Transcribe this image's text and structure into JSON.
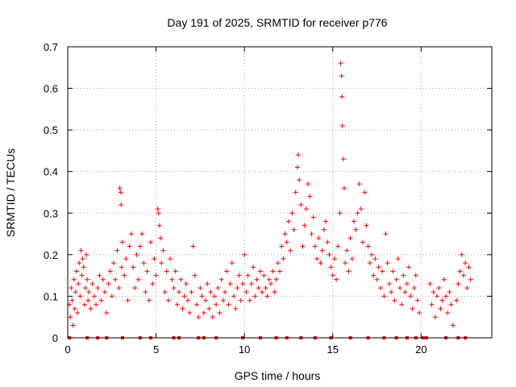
{
  "chart_data": {
    "type": "scatter",
    "title": "Day 191 of 2025, SRMTID for receiver p776",
    "xlabel": "GPS time / hours",
    "ylabel": "SRMTID / TECUs",
    "xlim": [
      0,
      24
    ],
    "ylim": [
      0,
      0.7
    ],
    "x_ticks": [
      0,
      5,
      10,
      15,
      20
    ],
    "x_tick_labels": [
      "0",
      "5",
      "10",
      "15",
      "20"
    ],
    "y_ticks": [
      0,
      0.1,
      0.2,
      0.3,
      0.4,
      0.5,
      0.6,
      0.7
    ],
    "y_tick_labels": [
      "0",
      "0.1",
      "0.2",
      "0.3",
      "0.4",
      "0.5",
      "0.6",
      "0.7"
    ],
    "grid": true,
    "marker": "+",
    "series": [
      {
        "name": "SRMTID",
        "color": "#ff0000",
        "points": [
          [
            0.1,
            0.08
          ],
          [
            0.15,
            0.05
          ],
          [
            0.2,
            0.12
          ],
          [
            0.25,
            0.09
          ],
          [
            0.3,
            0.03
          ],
          [
            0.35,
            0.14
          ],
          [
            0.4,
            0.07
          ],
          [
            0.45,
            0.11
          ],
          [
            0.5,
            0.16
          ],
          [
            0.55,
            0.06
          ],
          [
            0.6,
            0.13
          ],
          [
            0.65,
            0.18
          ],
          [
            0.7,
            0.1
          ],
          [
            0.75,
            0.21
          ],
          [
            0.8,
            0.15
          ],
          [
            0.85,
            0.19
          ],
          [
            0.9,
            0.17
          ],
          [
            0.95,
            0.08
          ],
          [
            1.0,
            0.12
          ],
          [
            1.05,
            0.2
          ],
          [
            1.1,
            0.14
          ],
          [
            1.15,
            0.09
          ],
          [
            1.2,
            0.11
          ],
          [
            1.3,
            0.07
          ],
          [
            1.4,
            0.13
          ],
          [
            1.5,
            0.1
          ],
          [
            1.6,
            0.08
          ],
          [
            1.7,
            0.12
          ],
          [
            1.8,
            0.15
          ],
          [
            1.9,
            0.09
          ],
          [
            2.0,
            0.14
          ],
          [
            2.1,
            0.11
          ],
          [
            2.2,
            0.06
          ],
          [
            2.3,
            0.13
          ],
          [
            2.4,
            0.16
          ],
          [
            2.5,
            0.1
          ],
          [
            2.6,
            0.18
          ],
          [
            2.7,
            0.14
          ],
          [
            2.8,
            0.21
          ],
          [
            2.9,
            0.12
          ],
          [
            2.95,
            0.36
          ],
          [
            3.0,
            0.35
          ],
          [
            3.02,
            0.32
          ],
          [
            3.05,
            0.17
          ],
          [
            3.1,
            0.23
          ],
          [
            3.2,
            0.15
          ],
          [
            3.3,
            0.19
          ],
          [
            3.4,
            0.09
          ],
          [
            3.5,
            0.22
          ],
          [
            3.6,
            0.25
          ],
          [
            3.7,
            0.17
          ],
          [
            3.8,
            0.12
          ],
          [
            3.9,
            0.2
          ],
          [
            4.0,
            0.14
          ],
          [
            4.1,
            0.22
          ],
          [
            4.2,
            0.25
          ],
          [
            4.3,
            0.18
          ],
          [
            4.4,
            0.11
          ],
          [
            4.5,
            0.16
          ],
          [
            4.6,
            0.09
          ],
          [
            4.7,
            0.23
          ],
          [
            4.8,
            0.13
          ],
          [
            4.9,
            0.19
          ],
          [
            5.0,
            0.15
          ],
          [
            5.1,
            0.31
          ],
          [
            5.15,
            0.3
          ],
          [
            5.2,
            0.27
          ],
          [
            5.25,
            0.24
          ],
          [
            5.3,
            0.18
          ],
          [
            5.4,
            0.21
          ],
          [
            5.5,
            0.11
          ],
          [
            5.6,
            0.16
          ],
          [
            5.7,
            0.09
          ],
          [
            5.8,
            0.19
          ],
          [
            5.9,
            0.14
          ],
          [
            6.0,
            0.12
          ],
          [
            6.1,
            0.16
          ],
          [
            6.2,
            0.08
          ],
          [
            6.3,
            0.11
          ],
          [
            6.4,
            0.14
          ],
          [
            6.5,
            0.07
          ],
          [
            6.6,
            0.1
          ],
          [
            6.7,
            0.13
          ],
          [
            6.8,
            0.09
          ],
          [
            6.9,
            0.06
          ],
          [
            7.0,
            0.11
          ],
          [
            7.1,
            0.22
          ],
          [
            7.2,
            0.15
          ],
          [
            7.3,
            0.08
          ],
          [
            7.4,
            0.05
          ],
          [
            7.5,
            0.12
          ],
          [
            7.6,
            0.1
          ],
          [
            7.7,
            0.06
          ],
          [
            7.8,
            0.09
          ],
          [
            7.9,
            0.13
          ],
          [
            8.0,
            0.07
          ],
          [
            8.1,
            0.11
          ],
          [
            8.2,
            0.05
          ],
          [
            8.3,
            0.1
          ],
          [
            8.4,
            0.08
          ],
          [
            8.5,
            0.12
          ],
          [
            8.6,
            0.06
          ],
          [
            8.7,
            0.14
          ],
          [
            8.8,
            0.09
          ],
          [
            8.9,
            0.11
          ],
          [
            9.0,
            0.16
          ],
          [
            9.1,
            0.08
          ],
          [
            9.2,
            0.13
          ],
          [
            9.3,
            0.18
          ],
          [
            9.4,
            0.1
          ],
          [
            9.5,
            0.07
          ],
          [
            9.6,
            0.12
          ],
          [
            9.7,
            0.15
          ],
          [
            9.8,
            0.09
          ],
          [
            9.9,
            0.13
          ],
          [
            10.0,
            0.2
          ],
          [
            10.1,
            0.11
          ],
          [
            10.2,
            0.15
          ],
          [
            10.3,
            0.09
          ],
          [
            10.4,
            0.13
          ],
          [
            10.5,
            0.17
          ],
          [
            10.6,
            0.1
          ],
          [
            10.7,
            0.14
          ],
          [
            10.8,
            0.12
          ],
          [
            10.9,
            0.16
          ],
          [
            11.0,
            0.11
          ],
          [
            11.1,
            0.15
          ],
          [
            11.2,
            0.12
          ],
          [
            11.3,
            0.1
          ],
          [
            11.4,
            0.14
          ],
          [
            11.5,
            0.13
          ],
          [
            11.6,
            0.16
          ],
          [
            11.7,
            0.11
          ],
          [
            11.8,
            0.14
          ],
          [
            11.9,
            0.18
          ],
          [
            12.0,
            0.16
          ],
          [
            12.1,
            0.22
          ],
          [
            12.2,
            0.19
          ],
          [
            12.3,
            0.25
          ],
          [
            12.4,
            0.23
          ],
          [
            12.5,
            0.28
          ],
          [
            12.6,
            0.21
          ],
          [
            12.7,
            0.3
          ],
          [
            12.8,
            0.26
          ],
          [
            12.9,
            0.35
          ],
          [
            13.0,
            0.41
          ],
          [
            13.05,
            0.44
          ],
          [
            13.1,
            0.38
          ],
          [
            13.2,
            0.32
          ],
          [
            13.3,
            0.22
          ],
          [
            13.4,
            0.27
          ],
          [
            13.5,
            0.31
          ],
          [
            13.6,
            0.37
          ],
          [
            13.7,
            0.34
          ],
          [
            13.8,
            0.25
          ],
          [
            13.9,
            0.29
          ],
          [
            14.0,
            0.22
          ],
          [
            14.1,
            0.19
          ],
          [
            14.2,
            0.24
          ],
          [
            14.3,
            0.18
          ],
          [
            14.4,
            0.21
          ],
          [
            14.5,
            0.26
          ],
          [
            14.6,
            0.28
          ],
          [
            14.7,
            0.23
          ],
          [
            14.8,
            0.2
          ],
          [
            14.9,
            0.17
          ],
          [
            15.0,
            0.15
          ],
          [
            15.1,
            0.19
          ],
          [
            15.2,
            0.14
          ],
          [
            15.3,
            0.22
          ],
          [
            15.4,
            0.3
          ],
          [
            15.45,
            0.66
          ],
          [
            15.5,
            0.63
          ],
          [
            15.52,
            0.58
          ],
          [
            15.55,
            0.51
          ],
          [
            15.6,
            0.43
          ],
          [
            15.65,
            0.36
          ],
          [
            15.7,
            0.18
          ],
          [
            15.8,
            0.21
          ],
          [
            15.9,
            0.16
          ],
          [
            16.0,
            0.24
          ],
          [
            16.1,
            0.19
          ],
          [
            16.2,
            0.28
          ],
          [
            16.3,
            0.26
          ],
          [
            16.4,
            0.3
          ],
          [
            16.5,
            0.37
          ],
          [
            16.6,
            0.31
          ],
          [
            16.7,
            0.23
          ],
          [
            16.8,
            0.35
          ],
          [
            16.9,
            0.27
          ],
          [
            17.0,
            0.22
          ],
          [
            17.1,
            0.18
          ],
          [
            17.2,
            0.2
          ],
          [
            17.3,
            0.15
          ],
          [
            17.4,
            0.19
          ],
          [
            17.5,
            0.14
          ],
          [
            17.6,
            0.17
          ],
          [
            17.7,
            0.12
          ],
          [
            17.8,
            0.16
          ],
          [
            17.9,
            0.1
          ],
          [
            18.0,
            0.25
          ],
          [
            18.1,
            0.18
          ],
          [
            18.2,
            0.13
          ],
          [
            18.3,
            0.11
          ],
          [
            18.4,
            0.16
          ],
          [
            18.5,
            0.09
          ],
          [
            18.6,
            0.14
          ],
          [
            18.7,
            0.19
          ],
          [
            18.8,
            0.12
          ],
          [
            18.9,
            0.08
          ],
          [
            19.0,
            0.15
          ],
          [
            19.1,
            0.11
          ],
          [
            19.2,
            0.13
          ],
          [
            19.3,
            0.17
          ],
          [
            19.4,
            0.1
          ],
          [
            19.5,
            0.07
          ],
          [
            19.6,
            0.12
          ],
          [
            19.7,
            0.15
          ],
          [
            19.8,
            0.09
          ],
          [
            19.9,
            0.06
          ],
          [
            20.5,
            0.13
          ],
          [
            20.6,
            0.08
          ],
          [
            20.7,
            0.11
          ],
          [
            20.8,
            0.05
          ],
          [
            20.9,
            0.1
          ],
          [
            21.0,
            0.12
          ],
          [
            21.1,
            0.07
          ],
          [
            21.2,
            0.09
          ],
          [
            21.3,
            0.14
          ],
          [
            21.4,
            0.1
          ],
          [
            21.5,
            0.06
          ],
          [
            21.6,
            0.11
          ],
          [
            21.7,
            0.08
          ],
          [
            21.8,
            0.03
          ],
          [
            22.0,
            0.09
          ],
          [
            22.1,
            0.13
          ],
          [
            22.2,
            0.16
          ],
          [
            22.3,
            0.2
          ],
          [
            22.4,
            0.15
          ],
          [
            22.5,
            0.18
          ],
          [
            22.6,
            0.12
          ],
          [
            22.7,
            0.17
          ],
          [
            22.8,
            0.14
          ]
        ]
      }
    ],
    "zero_points_x": [
      0.1,
      1.1,
      1.7,
      2.2,
      3.1,
      4.1,
      4.7,
      6.0,
      6.3,
      7.4,
      7.7,
      8.4,
      9.9,
      10.9,
      11.8,
      12.4,
      13.2,
      14.0,
      14.9,
      16.0,
      17.0,
      17.9,
      18.6,
      19.2,
      19.7,
      20.1,
      20.3,
      21.4,
      22.1,
      22.5
    ]
  }
}
